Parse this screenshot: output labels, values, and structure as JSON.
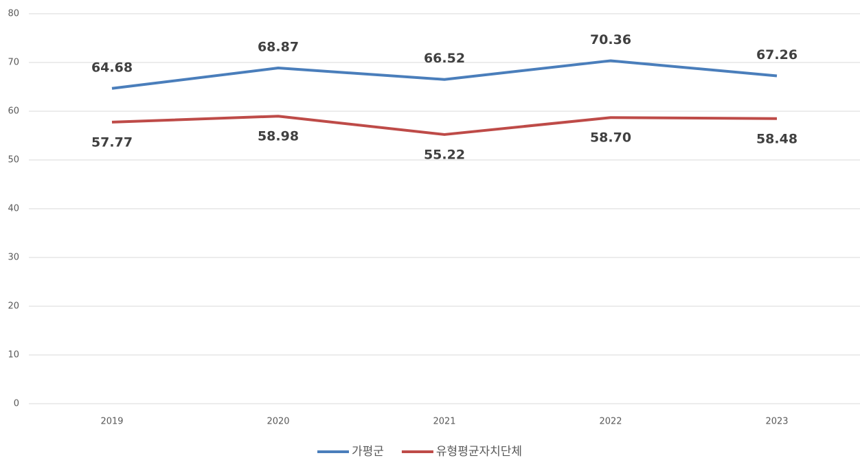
{
  "chart_data": {
    "type": "line",
    "categories": [
      "2019",
      "2020",
      "2021",
      "2022",
      "2023"
    ],
    "series": [
      {
        "name": "가평군",
        "color": "#4a7ebb",
        "values": [
          64.68,
          68.87,
          66.52,
          70.36,
          67.26
        ],
        "value_labels": [
          "64.68",
          "68.87",
          "66.52",
          "70.36",
          "67.26"
        ]
      },
      {
        "name": "유형평균자치단체",
        "color": "#be4b48",
        "values": [
          57.77,
          58.98,
          55.22,
          58.7,
          58.48
        ],
        "value_labels": [
          "57.77",
          "58.98",
          "55.22",
          "58.70",
          "58.48"
        ]
      }
    ],
    "ylim": [
      0,
      80
    ],
    "yticks": [
      0,
      10,
      20,
      30,
      40,
      50,
      60,
      70,
      80
    ],
    "grid": true,
    "legend": "bottom"
  }
}
